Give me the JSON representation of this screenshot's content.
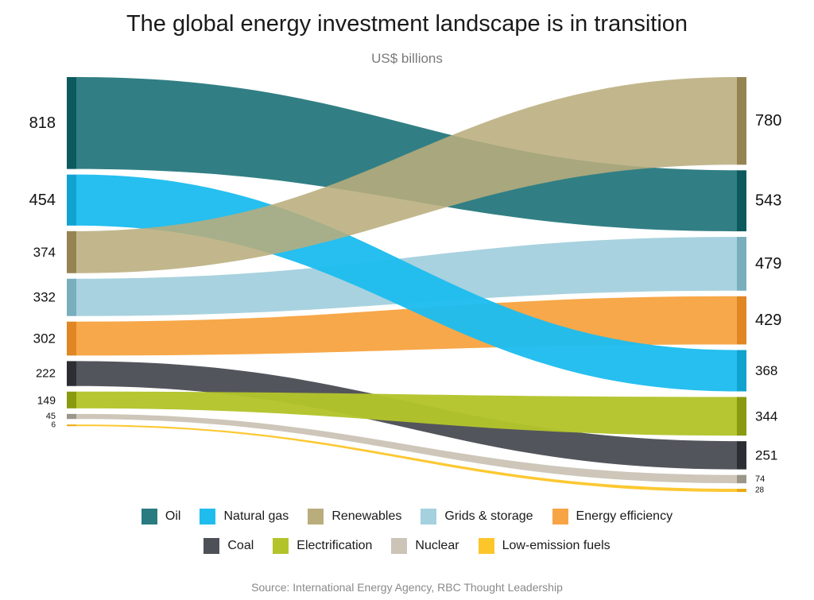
{
  "chart_data": {
    "type": "sankey",
    "title": "The global energy investment landscape is in transition",
    "subtitle": "US$ billions",
    "source": "Source: International Energy Agency, RBC Thought Leadership",
    "series": [
      {
        "name": "Oil",
        "start": 818,
        "end": 543,
        "color": "#2a7b80",
        "bar_color": "#0d5a5e"
      },
      {
        "name": "Natural gas",
        "start": 454,
        "end": 368,
        "color": "#1fbdee",
        "bar_color": "#11a3d0"
      },
      {
        "name": "Renewables",
        "start": 374,
        "end": 780,
        "color": "#b9ad7c",
        "bar_color": "#958452"
      },
      {
        "name": "Grids & storage",
        "start": 332,
        "end": 479,
        "color": "#a5d1de",
        "bar_color": "#79aebc"
      },
      {
        "name": "Energy efficiency",
        "start": 302,
        "end": 429,
        "color": "#f7a544",
        "bar_color": "#e08624"
      },
      {
        "name": "Coal",
        "start": 222,
        "end": 251,
        "color": "#4d5057",
        "bar_color": "#2c2e33"
      },
      {
        "name": "Electrification",
        "start": 149,
        "end": 344,
        "color": "#b3c42b",
        "bar_color": "#8a9a10"
      },
      {
        "name": "Nuclear",
        "start": 45,
        "end": 74,
        "color": "#cbc4b7",
        "bar_color": "#9c9589"
      },
      {
        "name": "Low-emission fuels",
        "start": 6,
        "end": 28,
        "color": "#fcc62b",
        "bar_color": "#e8a90f"
      }
    ],
    "start_order": [
      "Oil",
      "Natural gas",
      "Renewables",
      "Grids & storage",
      "Energy efficiency",
      "Coal",
      "Electrification",
      "Nuclear",
      "Low-emission fuels"
    ],
    "end_order": [
      "Renewables",
      "Oil",
      "Grids & storage",
      "Energy efficiency",
      "Natural gas",
      "Electrification",
      "Coal",
      "Nuclear",
      "Low-emission fuels"
    ],
    "legend": {
      "placement": "bottom",
      "rows": [
        [
          "Oil",
          "Natural gas",
          "Renewables",
          "Grids & storage",
          "Energy efficiency"
        ],
        [
          "Coal",
          "Electrification",
          "Nuclear",
          "Low-emission fuels"
        ]
      ]
    }
  }
}
